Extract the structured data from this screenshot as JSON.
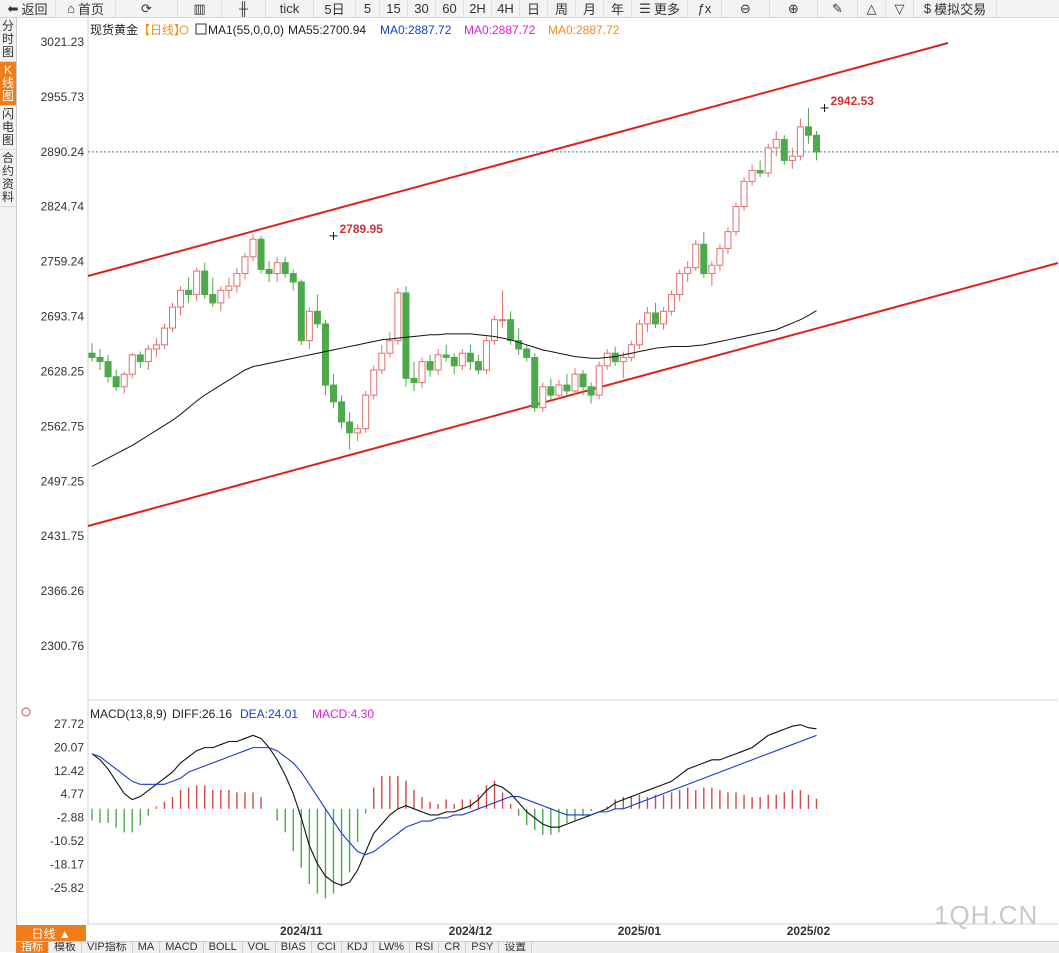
{
  "toolbar": {
    "items": [
      {
        "label": "返回",
        "icon": "back-arrow-icon",
        "glyph": "⬅",
        "w": 56
      },
      {
        "label": "首页",
        "icon": "home-icon",
        "glyph": "⌂",
        "w": 60
      },
      {
        "label": "",
        "icon": "refresh-icon",
        "glyph": "⟳",
        "w": 62
      },
      {
        "label": "",
        "icon": "bar-chart-icon",
        "glyph": "▥",
        "w": 44
      },
      {
        "label": "",
        "icon": "candlestick-icon",
        "glyph": "╫",
        "w": 44
      },
      {
        "label": "tick",
        "icon": "",
        "glyph": "",
        "w": 48
      },
      {
        "label": "5日",
        "icon": "",
        "glyph": "",
        "w": 42
      },
      {
        "label": "5",
        "icon": "",
        "glyph": "",
        "w": 24
      },
      {
        "label": "15",
        "icon": "",
        "glyph": "",
        "w": 28
      },
      {
        "label": "30",
        "icon": "",
        "glyph": "",
        "w": 28
      },
      {
        "label": "60",
        "icon": "",
        "glyph": "",
        "w": 28
      },
      {
        "label": "2H",
        "icon": "",
        "glyph": "",
        "w": 28
      },
      {
        "label": "4H",
        "icon": "",
        "glyph": "",
        "w": 28
      },
      {
        "label": "日",
        "icon": "",
        "glyph": "",
        "w": 28
      },
      {
        "label": "周",
        "icon": "",
        "glyph": "",
        "w": 28
      },
      {
        "label": "月",
        "icon": "",
        "glyph": "",
        "w": 28
      },
      {
        "label": "年",
        "icon": "",
        "glyph": "",
        "w": 28
      },
      {
        "label": "更多",
        "icon": "menu-icon",
        "glyph": "☰",
        "w": 56
      },
      {
        "label": "",
        "icon": "formula-icon",
        "glyph": "ƒx",
        "w": 34
      },
      {
        "label": "",
        "icon": "zoom-out-icon",
        "glyph": "⊖",
        "w": 48
      },
      {
        "label": "",
        "icon": "zoom-in-icon",
        "glyph": "⊕",
        "w": 48
      },
      {
        "label": "",
        "icon": "draw-pen-icon",
        "glyph": "✎",
        "w": 40
      },
      {
        "label": "",
        "icon": "triangle-up-icon",
        "glyph": "△",
        "w": 28
      },
      {
        "label": "",
        "icon": "triangle-down-icon",
        "glyph": "▽",
        "w": 28
      },
      {
        "label": "模拟交易",
        "icon": "dollar-icon",
        "glyph": "$",
        "w": 83
      }
    ]
  },
  "sidebar": {
    "tabs": [
      {
        "label": "分时图",
        "active": false
      },
      {
        "label": "K线图",
        "active": true
      },
      {
        "label": "闪电图",
        "active": false
      },
      {
        "label": "合约资料",
        "active": false
      }
    ]
  },
  "chart_data": [
    {
      "type": "candlestick",
      "title": "现货黄金",
      "period_badge": "【日线】",
      "legend": [
        {
          "text": "MA1(55,0,0,0)",
          "color": "#222222"
        },
        {
          "text": "MA55:2700.94",
          "color": "#222222"
        },
        {
          "text": "MA0:2887.72",
          "color": "#1a3cc8"
        },
        {
          "text": "MA0:2887.72",
          "color": "#e020d0"
        },
        {
          "text": "MA0:2887.72",
          "color": "#f08c1c"
        }
      ],
      "y_ticks": [
        3021.23,
        2955.73,
        2890.24,
        2824.74,
        2759.24,
        2693.74,
        2628.25,
        2562.75,
        2497.25,
        2431.75,
        2366.26,
        2300.76
      ],
      "ylim": [
        2300.76,
        3021.23
      ],
      "x_ticks": [
        {
          "label": "2024/11",
          "index": 26
        },
        {
          "label": "2024/12",
          "index": 47
        },
        {
          "label": "2025/01",
          "index": 68
        },
        {
          "label": "2025/02",
          "index": 89
        }
      ],
      "last_price_line": 2890.24,
      "annotations": [
        {
          "text": "2789.95",
          "index": 30,
          "value": 2789.95
        },
        {
          "text": "2942.53",
          "index": 91,
          "value": 2942.53
        }
      ],
      "up_color": "#e07070",
      "down_color": "#4caa4c",
      "ohlc": [
        [
          2650,
          2662,
          2640,
          2645
        ],
        [
          2645,
          2655,
          2630,
          2640
        ],
        [
          2640,
          2648,
          2615,
          2622
        ],
        [
          2622,
          2630,
          2605,
          2610
        ],
        [
          2610,
          2628,
          2602,
          2625
        ],
        [
          2625,
          2650,
          2620,
          2648
        ],
        [
          2648,
          2652,
          2632,
          2640
        ],
        [
          2640,
          2660,
          2630,
          2655
        ],
        [
          2655,
          2668,
          2645,
          2660
        ],
        [
          2660,
          2685,
          2655,
          2680
        ],
        [
          2680,
          2710,
          2675,
          2705
        ],
        [
          2705,
          2730,
          2695,
          2725
        ],
        [
          2725,
          2740,
          2710,
          2720
        ],
        [
          2720,
          2752,
          2712,
          2748
        ],
        [
          2748,
          2758,
          2715,
          2720
        ],
        [
          2720,
          2740,
          2705,
          2710
        ],
        [
          2710,
          2730,
          2700,
          2725
        ],
        [
          2725,
          2740,
          2715,
          2730
        ],
        [
          2730,
          2752,
          2722,
          2745
        ],
        [
          2745,
          2770,
          2738,
          2765
        ],
        [
          2765,
          2792,
          2760,
          2786
        ],
        [
          2786,
          2790,
          2745,
          2750
        ],
        [
          2750,
          2760,
          2735,
          2745
        ],
        [
          2745,
          2765,
          2735,
          2758
        ],
        [
          2758,
          2765,
          2740,
          2745
        ],
        [
          2745,
          2750,
          2725,
          2735
        ],
        [
          2735,
          2738,
          2660,
          2665
        ],
        [
          2665,
          2705,
          2655,
          2700
        ],
        [
          2700,
          2720,
          2680,
          2685
        ],
        [
          2685,
          2690,
          2600,
          2612
        ],
        [
          2612,
          2625,
          2585,
          2592
        ],
        [
          2592,
          2600,
          2560,
          2568
        ],
        [
          2568,
          2580,
          2535,
          2555
        ],
        [
          2555,
          2565,
          2545,
          2560
        ],
        [
          2560,
          2605,
          2555,
          2600
        ],
        [
          2600,
          2635,
          2595,
          2630
        ],
        [
          2630,
          2660,
          2625,
          2650
        ],
        [
          2650,
          2675,
          2645,
          2665
        ],
        [
          2665,
          2728,
          2660,
          2722
        ],
        [
          2722,
          2730,
          2610,
          2620
        ],
        [
          2620,
          2640,
          2605,
          2615
        ],
        [
          2615,
          2645,
          2608,
          2640
        ],
        [
          2640,
          2648,
          2622,
          2630
        ],
        [
          2630,
          2655,
          2624,
          2648
        ],
        [
          2648,
          2660,
          2640,
          2645
        ],
        [
          2645,
          2650,
          2625,
          2635
        ],
        [
          2635,
          2655,
          2630,
          2650
        ],
        [
          2650,
          2660,
          2630,
          2640
        ],
        [
          2640,
          2648,
          2625,
          2630
        ],
        [
          2630,
          2670,
          2625,
          2665
        ],
        [
          2665,
          2695,
          2660,
          2690
        ],
        [
          2690,
          2725,
          2680,
          2690
        ],
        [
          2690,
          2700,
          2660,
          2665
        ],
        [
          2665,
          2680,
          2648,
          2655
        ],
        [
          2655,
          2660,
          2640,
          2645
        ],
        [
          2645,
          2650,
          2580,
          2585
        ],
        [
          2585,
          2615,
          2580,
          2610
        ],
        [
          2610,
          2620,
          2595,
          2600
        ],
        [
          2600,
          2618,
          2595,
          2612
        ],
        [
          2612,
          2625,
          2600,
          2605
        ],
        [
          2605,
          2632,
          2600,
          2625
        ],
        [
          2625,
          2630,
          2600,
          2610
        ],
        [
          2610,
          2615,
          2590,
          2600
        ],
        [
          2600,
          2640,
          2595,
          2635
        ],
        [
          2635,
          2655,
          2630,
          2650
        ],
        [
          2650,
          2658,
          2635,
          2640
        ],
        [
          2640,
          2652,
          2620,
          2645
        ],
        [
          2645,
          2665,
          2640,
          2660
        ],
        [
          2660,
          2690,
          2655,
          2685
        ],
        [
          2685,
          2705,
          2675,
          2698
        ],
        [
          2698,
          2710,
          2680,
          2685
        ],
        [
          2685,
          2705,
          2678,
          2700
        ],
        [
          2700,
          2725,
          2695,
          2720
        ],
        [
          2720,
          2750,
          2712,
          2745
        ],
        [
          2745,
          2760,
          2735,
          2752
        ],
        [
          2752,
          2785,
          2748,
          2780
        ],
        [
          2780,
          2795,
          2740,
          2745
        ],
        [
          2745,
          2760,
          2730,
          2755
        ],
        [
          2755,
          2780,
          2748,
          2775
        ],
        [
          2775,
          2800,
          2768,
          2795
        ],
        [
          2795,
          2830,
          2790,
          2825
        ],
        [
          2825,
          2860,
          2820,
          2855
        ],
        [
          2855,
          2875,
          2850,
          2868
        ],
        [
          2868,
          2880,
          2860,
          2865
        ],
        [
          2865,
          2900,
          2860,
          2895
        ],
        [
          2895,
          2915,
          2885,
          2905
        ],
        [
          2905,
          2910,
          2875,
          2880
        ],
        [
          2880,
          2895,
          2870,
          2885
        ],
        [
          2885,
          2930,
          2880,
          2920
        ],
        [
          2920,
          2942.53,
          2900,
          2910
        ],
        [
          2910,
          2915,
          2880,
          2890
        ]
      ],
      "ma55": [
        2515,
        2520,
        2525,
        2530,
        2535,
        2540,
        2546,
        2552,
        2558,
        2564,
        2570,
        2577,
        2585,
        2593,
        2600,
        2606,
        2612,
        2618,
        2624,
        2630,
        2634,
        2636,
        2638,
        2640,
        2642,
        2644,
        2646,
        2648,
        2650,
        2652,
        2654,
        2656,
        2658,
        2660,
        2662,
        2664,
        2666,
        2667,
        2668,
        2669,
        2670,
        2671,
        2672,
        2672,
        2673,
        2673,
        2673,
        2673,
        2672,
        2671,
        2670,
        2668,
        2666,
        2663,
        2660,
        2657,
        2654,
        2652,
        2650,
        2648,
        2646,
        2645,
        2644,
        2644,
        2645,
        2646,
        2648,
        2650,
        2652,
        2654,
        2656,
        2657,
        2658,
        2658,
        2658,
        2659,
        2660,
        2662,
        2664,
        2666,
        2668,
        2670,
        2672,
        2674,
        2676,
        2678,
        2682,
        2686,
        2690,
        2695,
        2700.94
      ]
    },
    {
      "type": "macd",
      "title": "MACD(13,8,9)",
      "legend": [
        {
          "text": "DIFF:26.16",
          "color": "#222222"
        },
        {
          "text": "DEA:24.01",
          "color": "#1a3cc8"
        },
        {
          "text": "MACD:4.30",
          "color": "#e020d0"
        }
      ],
      "y_ticks": [
        27.72,
        20.07,
        12.42,
        4.77,
        -2.88,
        -10.52,
        -18.17,
        -25.82
      ],
      "ylim": [
        -28.5,
        27.72
      ],
      "up_color": "#d04a4a",
      "down_color": "#4caa4c",
      "diff": [
        18,
        16,
        13,
        9,
        5,
        3,
        4,
        6,
        8,
        10,
        12,
        15,
        17,
        19,
        20,
        20,
        21,
        22,
        22,
        23,
        24,
        23,
        20,
        16,
        11,
        5,
        -3,
        -12,
        -18,
        -22,
        -24,
        -25,
        -24,
        -20,
        -14,
        -8,
        -5,
        -2,
        0,
        1,
        0,
        -1,
        -2,
        -2,
        -1,
        -1,
        0,
        1,
        3,
        6,
        8,
        7,
        5,
        2,
        -1,
        -3,
        -5,
        -6,
        -6,
        -5,
        -4,
        -3,
        -2,
        -1,
        0,
        2,
        3,
        4,
        5,
        6,
        7,
        8,
        9,
        11,
        13,
        14,
        15,
        16,
        16,
        17,
        18,
        19,
        20,
        22,
        24,
        25,
        26,
        27,
        27.5,
        26.5,
        26.16
      ],
      "dea": [
        18,
        17,
        15,
        13,
        11,
        9,
        8,
        8,
        8,
        8,
        9,
        10,
        12,
        13,
        14,
        15,
        16,
        17,
        18,
        19,
        20,
        20,
        20,
        19,
        17,
        15,
        12,
        8,
        4,
        0,
        -4,
        -8,
        -11,
        -14,
        -15,
        -14,
        -12,
        -10,
        -8,
        -6,
        -5,
        -4,
        -4,
        -3,
        -3,
        -2,
        -2,
        -1,
        0,
        1,
        2,
        3,
        4,
        4,
        3,
        2,
        1,
        0,
        -1,
        -2,
        -2,
        -2,
        -2,
        -1,
        -1,
        0,
        0,
        1,
        2,
        3,
        4,
        5,
        6,
        7,
        8,
        9,
        10,
        11,
        12,
        13,
        14,
        15,
        16,
        17,
        18,
        19,
        20,
        21,
        22,
        23,
        24.01
      ],
      "hist": [
        -5,
        -6,
        -6,
        -8,
        -10,
        -10,
        -7,
        -3,
        1,
        3,
        5,
        8,
        9,
        10,
        10,
        8,
        8,
        8,
        7,
        7,
        7,
        5,
        0,
        -5,
        -10,
        -18,
        -25,
        -32,
        -36,
        -38,
        -36,
        -33,
        -27,
        -14,
        -2,
        9,
        14,
        14,
        14,
        12,
        8,
        5,
        3,
        2,
        4,
        2,
        4,
        4,
        6,
        10,
        12,
        7,
        2,
        -3,
        -7,
        -9,
        -11,
        -11,
        -10,
        -6,
        -5,
        -3,
        -1,
        0,
        1,
        4,
        5,
        5,
        6,
        5,
        6,
        6,
        7,
        8,
        9,
        8,
        9,
        9,
        8,
        7,
        7,
        6,
        5,
        5,
        6,
        6,
        7,
        8,
        8,
        6,
        4.3
      ]
    }
  ],
  "bottom_bar": {
    "period_label": "日线 ▲",
    "tabs": [
      {
        "label": "指标",
        "active": true
      },
      {
        "label": "模板",
        "active": false
      },
      {
        "label": "VIP指标",
        "active": false
      },
      {
        "label": "MA",
        "active": false
      },
      {
        "label": "MACD",
        "active": false
      },
      {
        "label": "BOLL",
        "active": false
      },
      {
        "label": "VOL",
        "active": false
      },
      {
        "label": "BIAS",
        "active": false
      },
      {
        "label": "CCI",
        "active": false
      },
      {
        "label": "KDJ",
        "active": false
      },
      {
        "label": "LW%",
        "active": false
      },
      {
        "label": "RSI",
        "active": false
      },
      {
        "label": "CR",
        "active": false
      },
      {
        "label": "PSY",
        "active": false
      },
      {
        "label": "设置",
        "active": false
      }
    ]
  },
  "watermark": "1QH.CN"
}
